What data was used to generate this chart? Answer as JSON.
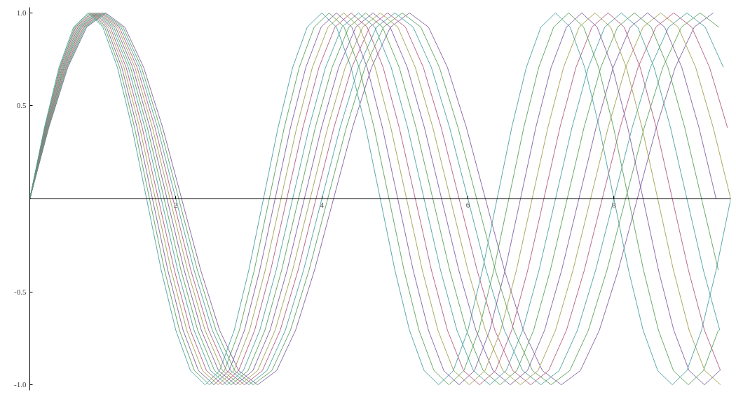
{
  "chart_data": {
    "type": "line",
    "xlim": [
      0,
      9.6
    ],
    "ylim": [
      -1.03,
      1.03
    ],
    "xticks": [
      2,
      4,
      6,
      8
    ],
    "yticks": [
      {
        "value": -1,
        "label": "-1.0"
      },
      {
        "value": -0.5,
        "label": "-0.5"
      },
      {
        "value": 0.5,
        "label": "0.5"
      },
      {
        "value": 1,
        "label": "1.0"
      }
    ],
    "series": [
      {
        "color": "#7f5fa0",
        "x": [
          0,
          0.26,
          0.52,
          0.78,
          1.04,
          1.3,
          1.56,
          1.82,
          2.08,
          2.34,
          2.6,
          2.86,
          3.12,
          3.38,
          3.64,
          3.9,
          4.16,
          4.42,
          4.68,
          4.94,
          5.2,
          5.46,
          5.72,
          5.98,
          6.24,
          6.5,
          6.76,
          7.02,
          7.28,
          7.54,
          7.8,
          8.06,
          8.32,
          8.58,
          8.84,
          9.1,
          9.36
        ],
        "values": [
          0,
          0.383,
          0.707,
          0.924,
          1,
          0.924,
          0.707,
          0.383,
          0,
          -0.383,
          -0.707,
          -0.924,
          -1,
          -0.924,
          -0.707,
          -0.383,
          0,
          0.383,
          0.707,
          0.924,
          1,
          0.924,
          0.707,
          0.383,
          0,
          -0.383,
          -0.707,
          -0.924,
          -1,
          -0.924,
          -0.707,
          -0.383,
          0,
          0.383,
          0.707,
          0.924,
          1
        ]
      },
      {
        "color": "#5aa05a",
        "x": [
          0,
          0.255,
          0.51,
          0.765,
          1.02,
          1.275,
          1.53,
          1.785,
          2.04,
          2.295,
          2.55,
          2.805,
          3.06,
          3.315,
          3.57,
          3.825,
          4.08,
          4.335,
          4.59,
          4.845,
          5.1,
          5.355,
          5.61,
          5.865,
          6.12,
          6.375,
          6.63,
          6.885,
          7.14,
          7.395,
          7.65,
          7.905,
          8.16,
          8.415,
          8.67,
          8.925,
          9.18,
          9.435
        ],
        "values": [
          0,
          0.383,
          0.707,
          0.924,
          1,
          0.924,
          0.707,
          0.383,
          0,
          -0.383,
          -0.707,
          -0.924,
          -1,
          -0.924,
          -0.707,
          -0.383,
          0,
          0.383,
          0.707,
          0.924,
          1,
          0.924,
          0.707,
          0.383,
          0,
          -0.383,
          -0.707,
          -0.924,
          -1,
          -0.924,
          -0.707,
          -0.383,
          0,
          0.383,
          0.707,
          0.924,
          1,
          0.924
        ]
      },
      {
        "color": "#4aa0a0",
        "x": [
          0,
          0.25,
          0.5,
          0.75,
          1,
          1.25,
          1.5,
          1.75,
          2,
          2.25,
          2.5,
          2.75,
          3,
          3.25,
          3.5,
          3.75,
          4,
          4.25,
          4.5,
          4.75,
          5,
          5.25,
          5.5,
          5.75,
          6,
          6.25,
          6.5,
          6.75,
          7,
          7.25,
          7.5,
          7.75,
          8,
          8.25,
          8.5,
          8.75,
          9,
          9.25,
          9.5
        ],
        "values": [
          0,
          0.383,
          0.707,
          0.924,
          1,
          0.924,
          0.707,
          0.383,
          0,
          -0.383,
          -0.707,
          -0.924,
          -1,
          -0.924,
          -0.707,
          -0.383,
          0,
          0.383,
          0.707,
          0.924,
          1,
          0.924,
          0.707,
          0.383,
          0,
          -0.383,
          -0.707,
          -0.924,
          -1,
          -0.924,
          -0.707,
          -0.383,
          0,
          0.383,
          0.707,
          0.924,
          1,
          0.924,
          0.707
        ]
      },
      {
        "color": "#b05a80",
        "x": [
          0,
          0.245,
          0.49,
          0.735,
          0.98,
          1.225,
          1.47,
          1.715,
          1.96,
          2.205,
          2.45,
          2.695,
          2.94,
          3.185,
          3.43,
          3.675,
          3.92,
          4.165,
          4.41,
          4.655,
          4.9,
          5.145,
          5.39,
          5.635,
          5.88,
          6.125,
          6.37,
          6.615,
          6.86,
          7.105,
          7.35,
          7.595,
          7.84,
          8.085,
          8.33,
          8.575,
          8.82,
          9.065,
          9.31,
          9.555
        ],
        "values": [
          0,
          0.383,
          0.707,
          0.924,
          1,
          0.924,
          0.707,
          0.383,
          0,
          -0.383,
          -0.707,
          -0.924,
          -1,
          -0.924,
          -0.707,
          -0.383,
          0,
          0.383,
          0.707,
          0.924,
          1,
          0.924,
          0.707,
          0.383,
          0,
          -0.383,
          -0.707,
          -0.924,
          -1,
          -0.924,
          -0.707,
          -0.383,
          0,
          0.383,
          0.707,
          0.924,
          1,
          0.924,
          0.707,
          0.383
        ]
      },
      {
        "color": "#a0a050",
        "x": [
          0,
          0.24,
          0.48,
          0.72,
          0.96,
          1.2,
          1.44,
          1.68,
          1.92,
          2.16,
          2.4,
          2.64,
          2.88,
          3.12,
          3.36,
          3.6,
          3.84,
          4.08,
          4.32,
          4.56,
          4.8,
          5.04,
          5.28,
          5.52,
          5.76,
          6,
          6.24,
          6.48,
          6.72,
          6.96,
          7.2,
          7.44,
          7.68,
          7.92,
          8.16,
          8.4,
          8.64,
          8.88,
          9.12,
          9.36,
          9.6
        ],
        "values": [
          0,
          0.383,
          0.707,
          0.924,
          1,
          0.924,
          0.707,
          0.383,
          0,
          -0.383,
          -0.707,
          -0.924,
          -1,
          -0.924,
          -0.707,
          -0.383,
          0,
          0.383,
          0.707,
          0.924,
          1,
          0.924,
          0.707,
          0.383,
          0,
          -0.383,
          -0.707,
          -0.924,
          -1,
          -0.924,
          -0.707,
          -0.383,
          0,
          0.383,
          0.707,
          0.924,
          1,
          0.924,
          0.707,
          0.383,
          0
        ]
      },
      {
        "color": "#7f5fa0",
        "x": [
          0,
          0.235,
          0.47,
          0.705,
          0.94,
          1.175,
          1.41,
          1.645,
          1.88,
          2.115,
          2.35,
          2.585,
          2.82,
          3.055,
          3.29,
          3.525,
          3.76,
          3.995,
          4.23,
          4.465,
          4.7,
          4.935,
          5.17,
          5.405,
          5.64,
          5.875,
          6.11,
          6.345,
          6.58,
          6.815,
          7.05,
          7.285,
          7.52,
          7.755,
          7.99,
          8.225,
          8.46,
          8.695,
          8.93,
          9.165,
          9.4
        ],
        "values": [
          0,
          0.383,
          0.707,
          0.924,
          1,
          0.924,
          0.707,
          0.383,
          0,
          -0.383,
          -0.707,
          -0.924,
          -1,
          -0.924,
          -0.707,
          -0.383,
          0,
          0.383,
          0.707,
          0.924,
          1,
          0.924,
          0.707,
          0.383,
          0,
          -0.383,
          -0.707,
          -0.924,
          -1,
          -0.924,
          -0.707,
          -0.383,
          0,
          0.383,
          0.707,
          0.924,
          1,
          0.924,
          0.707,
          0.383,
          0
        ]
      },
      {
        "color": "#5aa05a",
        "x": [
          0,
          0.23,
          0.46,
          0.69,
          0.92,
          1.15,
          1.38,
          1.61,
          1.84,
          2.07,
          2.3,
          2.53,
          2.76,
          2.99,
          3.22,
          3.45,
          3.68,
          3.91,
          4.14,
          4.37,
          4.6,
          4.83,
          5.06,
          5.29,
          5.52,
          5.75,
          5.98,
          6.21,
          6.44,
          6.67,
          6.9,
          7.13,
          7.36,
          7.59,
          7.82,
          8.05,
          8.28,
          8.51,
          8.74,
          8.97,
          9.2,
          9.43
        ],
        "values": [
          0,
          0.383,
          0.707,
          0.924,
          1,
          0.924,
          0.707,
          0.383,
          0,
          -0.383,
          -0.707,
          -0.924,
          -1,
          -0.924,
          -0.707,
          -0.383,
          0,
          0.383,
          0.707,
          0.924,
          1,
          0.924,
          0.707,
          0.383,
          0,
          -0.383,
          -0.707,
          -0.924,
          -1,
          -0.924,
          -0.707,
          -0.383,
          0,
          0.383,
          0.707,
          0.924,
          1,
          0.924,
          0.707,
          0.383,
          0,
          -0.383
        ]
      },
      {
        "color": "#4aa0a0",
        "x": [
          0,
          0.225,
          0.45,
          0.675,
          0.9,
          1.125,
          1.35,
          1.575,
          1.8,
          2.025,
          2.25,
          2.475,
          2.7,
          2.925,
          3.15,
          3.375,
          3.6,
          3.825,
          4.05,
          4.275,
          4.5,
          4.725,
          4.95,
          5.175,
          5.4,
          5.625,
          5.85,
          6.075,
          6.3,
          6.525,
          6.75,
          6.975,
          7.2,
          7.425,
          7.65,
          7.875,
          8.1,
          8.325,
          8.55,
          8.775,
          9,
          9.225,
          9.45
        ],
        "values": [
          0,
          0.383,
          0.707,
          0.924,
          1,
          0.924,
          0.707,
          0.383,
          0,
          -0.383,
          -0.707,
          -0.924,
          -1,
          -0.924,
          -0.707,
          -0.383,
          0,
          0.383,
          0.707,
          0.924,
          1,
          0.924,
          0.707,
          0.383,
          0,
          -0.383,
          -0.707,
          -0.924,
          -1,
          -0.924,
          -0.707,
          -0.383,
          0,
          0.383,
          0.707,
          0.924,
          1,
          0.924,
          0.707,
          0.383,
          0,
          -0.383,
          -0.707
        ]
      },
      {
        "color": "#b05a80",
        "x": [
          0,
          0.22,
          0.44,
          0.66,
          0.88,
          1.1,
          1.32,
          1.54,
          1.76,
          1.98,
          2.2,
          2.42,
          2.64,
          2.86,
          3.08,
          3.3,
          3.52,
          3.74,
          3.96,
          4.18,
          4.4,
          4.62,
          4.84,
          5.06,
          5.28,
          5.5,
          5.72,
          5.94,
          6.16,
          6.38,
          6.6,
          6.82,
          7.04,
          7.26,
          7.48,
          7.7,
          7.92,
          8.14,
          8.36,
          8.58,
          8.8,
          9.02,
          9.24,
          9.46
        ],
        "values": [
          0,
          0.383,
          0.707,
          0.924,
          1,
          0.924,
          0.707,
          0.383,
          0,
          -0.383,
          -0.707,
          -0.924,
          -1,
          -0.924,
          -0.707,
          -0.383,
          0,
          0.383,
          0.707,
          0.924,
          1,
          0.924,
          0.707,
          0.383,
          0,
          -0.383,
          -0.707,
          -0.924,
          -1,
          -0.924,
          -0.707,
          -0.383,
          0,
          0.383,
          0.707,
          0.924,
          1,
          0.924,
          0.707,
          0.383,
          0,
          -0.383,
          -0.707,
          -0.924
        ]
      },
      {
        "color": "#a0a050",
        "x": [
          0,
          0.215,
          0.43,
          0.645,
          0.86,
          1.075,
          1.29,
          1.505,
          1.72,
          1.935,
          2.15,
          2.365,
          2.58,
          2.795,
          3.01,
          3.225,
          3.44,
          3.655,
          3.87,
          4.085,
          4.3,
          4.515,
          4.73,
          4.945,
          5.16,
          5.375,
          5.59,
          5.805,
          6.02,
          6.235,
          6.45,
          6.665,
          6.88,
          7.095,
          7.31,
          7.525,
          7.74,
          7.955,
          8.17,
          8.385,
          8.6,
          8.815,
          9.03,
          9.245,
          9.46
        ],
        "values": [
          0,
          0.383,
          0.707,
          0.924,
          1,
          0.924,
          0.707,
          0.383,
          0,
          -0.383,
          -0.707,
          -0.924,
          -1,
          -0.924,
          -0.707,
          -0.383,
          0,
          0.383,
          0.707,
          0.924,
          1,
          0.924,
          0.707,
          0.383,
          0,
          -0.383,
          -0.707,
          -0.924,
          -1,
          -0.924,
          -0.707,
          -0.383,
          0,
          0.383,
          0.707,
          0.924,
          1,
          0.924,
          0.707,
          0.383,
          0,
          -0.383,
          -0.707,
          -0.924,
          -1
        ]
      },
      {
        "color": "#7f5fa0",
        "x": [
          0,
          0.21,
          0.42,
          0.63,
          0.84,
          1.05,
          1.26,
          1.47,
          1.68,
          1.89,
          2.1,
          2.31,
          2.52,
          2.73,
          2.94,
          3.15,
          3.36,
          3.57,
          3.78,
          3.99,
          4.2,
          4.41,
          4.62,
          4.83,
          5.04,
          5.25,
          5.46,
          5.67,
          5.88,
          6.09,
          6.3,
          6.51,
          6.72,
          6.93,
          7.14,
          7.35,
          7.56,
          7.77,
          7.98,
          8.19,
          8.4,
          8.61,
          8.82,
          9.03,
          9.24,
          9.45
        ],
        "values": [
          0,
          0.383,
          0.707,
          0.924,
          1,
          0.924,
          0.707,
          0.383,
          0,
          -0.383,
          -0.707,
          -0.924,
          -1,
          -0.924,
          -0.707,
          -0.383,
          0,
          0.383,
          0.707,
          0.924,
          1,
          0.924,
          0.707,
          0.383,
          0,
          -0.383,
          -0.707,
          -0.924,
          -1,
          -0.924,
          -0.707,
          -0.383,
          0,
          0.383,
          0.707,
          0.924,
          1,
          0.924,
          0.707,
          0.383,
          0,
          -0.383,
          -0.707,
          -0.924,
          -1,
          -0.924
        ]
      },
      {
        "color": "#5aa05a",
        "x": [
          0,
          0.205,
          0.41,
          0.615,
          0.82,
          1.025,
          1.23,
          1.435,
          1.64,
          1.845,
          2.05,
          2.255,
          2.46,
          2.665,
          2.87,
          3.075,
          3.28,
          3.485,
          3.69,
          3.895,
          4.1,
          4.305,
          4.51,
          4.715,
          4.92,
          5.125,
          5.33,
          5.535,
          5.74,
          5.945,
          6.15,
          6.355,
          6.56,
          6.765,
          6.97,
          7.175,
          7.38,
          7.585,
          7.79,
          7.995,
          8.2,
          8.405,
          8.61,
          8.815,
          9.02,
          9.225,
          9.43
        ],
        "values": [
          0,
          0.383,
          0.707,
          0.924,
          1,
          0.924,
          0.707,
          0.383,
          0,
          -0.383,
          -0.707,
          -0.924,
          -1,
          -0.924,
          -0.707,
          -0.383,
          0,
          0.383,
          0.707,
          0.924,
          1,
          0.924,
          0.707,
          0.383,
          0,
          -0.383,
          -0.707,
          -0.924,
          -1,
          -0.924,
          -0.707,
          -0.383,
          0,
          0.383,
          0.707,
          0.924,
          1,
          0.924,
          0.707,
          0.383,
          0,
          -0.383,
          -0.707,
          -0.924,
          -1,
          -0.924,
          -0.707
        ]
      },
      {
        "color": "#4aa0a0",
        "x": [
          0,
          0.2,
          0.4,
          0.6,
          0.8,
          1,
          1.2,
          1.4,
          1.6,
          1.8,
          2,
          2.2,
          2.4,
          2.6,
          2.8,
          3,
          3.2,
          3.4,
          3.6,
          3.8,
          4,
          4.2,
          4.4,
          4.6,
          4.8,
          5,
          5.2,
          5.4,
          5.6,
          5.8,
          6,
          6.2,
          6.4,
          6.6,
          6.8,
          7,
          7.2,
          7.4,
          7.6,
          7.8,
          8,
          8.2,
          8.4,
          8.6,
          8.8,
          9,
          9.2,
          9.4,
          9.6
        ],
        "values": [
          0,
          0.383,
          0.707,
          0.924,
          1,
          0.924,
          0.707,
          0.383,
          0,
          -0.383,
          -0.707,
          -0.924,
          -1,
          -0.924,
          -0.707,
          -0.383,
          0,
          0.383,
          0.707,
          0.924,
          1,
          0.924,
          0.707,
          0.383,
          0,
          -0.383,
          -0.707,
          -0.924,
          -1,
          -0.924,
          -0.707,
          -0.383,
          0,
          0.383,
          0.707,
          0.924,
          1,
          0.924,
          0.707,
          0.383,
          0,
          -0.383,
          -0.707,
          -0.924,
          -1,
          -0.924,
          -0.707,
          -0.383,
          0
        ]
      }
    ]
  }
}
